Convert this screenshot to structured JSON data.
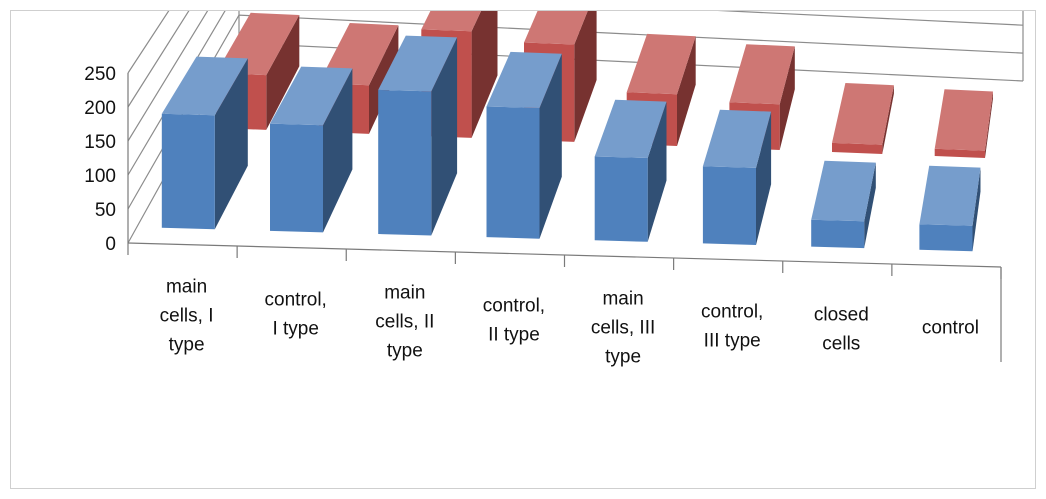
{
  "chart_data": {
    "type": "bar",
    "subtype": "3d-clustered-column",
    "title": "",
    "xlabel": "",
    "ylabel": "",
    "ylim": [
      0,
      250
    ],
    "yticks": [
      "0",
      "50",
      "100",
      "150",
      "200",
      "250"
    ],
    "grid": true,
    "legend": "none",
    "categories": [
      "main cells, I type",
      "control, I type",
      "main cells, II type",
      "control, II type",
      "main cells, III type",
      "control, III type",
      "closed cells",
      "control"
    ],
    "category_label_lines": [
      [
        "main",
        "cells, I",
        "type"
      ],
      [
        "control,",
        "I type"
      ],
      [
        "main",
        "cells, II",
        "type"
      ],
      [
        "control,",
        "II type"
      ],
      [
        "main",
        "cells, III",
        "type"
      ],
      [
        "control,",
        "III type"
      ],
      [
        "closed",
        "cells"
      ],
      [
        "control"
      ]
    ],
    "series": [
      {
        "color": "#4f81bd",
        "values": [
          170,
          160,
          215,
          195,
          125,
          115,
          40,
          38
        ]
      },
      {
        "color": "#c0504d",
        "values": [
          90,
          80,
          175,
          160,
          85,
          75,
          15,
          12
        ]
      }
    ]
  }
}
